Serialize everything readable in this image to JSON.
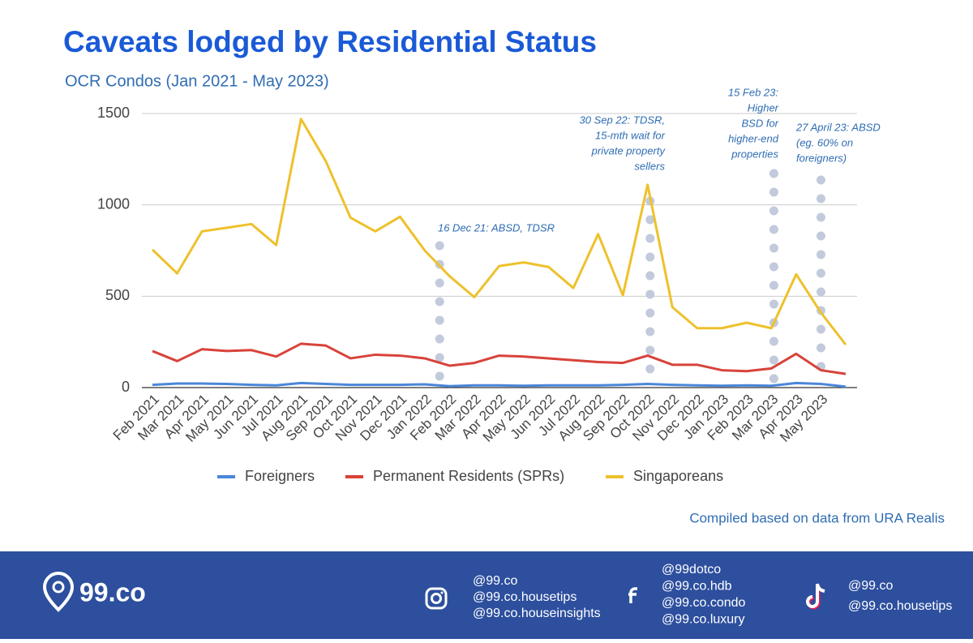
{
  "chart_data": {
    "type": "line",
    "title": "Caveats lodged by Residential Status",
    "subtitle": "OCR Condos (Jan 2021 - May 2023)",
    "categories": [
      "Feb 2021",
      "Mar 2021",
      "Apr 2021",
      "May 2021",
      "Jun 2021",
      "Jul 2021",
      "Aug 2021",
      "Sep 2021",
      "Oct 2021",
      "Nov 2021",
      "Dec 2021",
      "Jan 2022",
      "Feb 2022",
      "Mar 2022",
      "Apr 2022",
      "May 2022",
      "Jun 2022",
      "Jul 2022",
      "Aug 2022",
      "Sep 2022",
      "Oct 2022",
      "Nov 2022",
      "Dec 2022",
      "Jan 2023",
      "Feb 2023",
      "Mar 2023",
      "Apr 2023",
      "May 2023",
      null
    ],
    "series": [
      {
        "name": "Foreigners",
        "color": "#4a86d8",
        "values": [
          15,
          22,
          22,
          20,
          15,
          12,
          25,
          20,
          15,
          15,
          15,
          18,
          8,
          12,
          12,
          10,
          12,
          12,
          12,
          15,
          20,
          15,
          12,
          10,
          12,
          10,
          25,
          20,
          5
        ]
      },
      {
        "name": "Permanent Residents (SPRs)",
        "color": "#d8433a",
        "values": [
          200,
          145,
          210,
          200,
          205,
          170,
          240,
          230,
          160,
          180,
          175,
          160,
          120,
          135,
          175,
          170,
          160,
          150,
          140,
          135,
          175,
          125,
          125,
          95,
          90,
          105,
          185,
          95,
          75
        ]
      },
      {
        "name": "Singaporeans",
        "color": "#eec12c",
        "values": [
          755,
          625,
          855,
          875,
          895,
          780,
          1470,
          1240,
          930,
          855,
          935,
          750,
          610,
          495,
          665,
          685,
          660,
          545,
          840,
          505,
          1110,
          440,
          325,
          325,
          355,
          325,
          620,
          410,
          235
        ]
      }
    ],
    "ylim": [
      0,
      1500
    ],
    "yticks": [
      0,
      500,
      1000,
      1500
    ],
    "grid": true,
    "legend": "bottom",
    "annotations": [
      [
        "16 Dec 21: ABSD, TDSR"
      ],
      [
        "30 Sep 22: TDSR,",
        "15-mth wait for",
        "private property",
        "sellers"
      ],
      [
        "15 Feb 23:",
        "Higher",
        "BSD for",
        "higher-end",
        "properties"
      ],
      [
        "27 April 23: ABSD",
        "(eg. 60% on",
        "foreigners)"
      ]
    ],
    "source": "Compiled based on data from URA Realis"
  },
  "footer": {
    "brand": "99.co",
    "instagram": [
      "@99.co",
      "@99.co.housetips",
      "@99.co.houseinsights"
    ],
    "facebook": [
      "@99dotco",
      "@99.co.hdb",
      "@99.co.condo",
      "@99.co.luxury"
    ],
    "tiktok": [
      "@99.co",
      "@99.co.housetips"
    ]
  }
}
